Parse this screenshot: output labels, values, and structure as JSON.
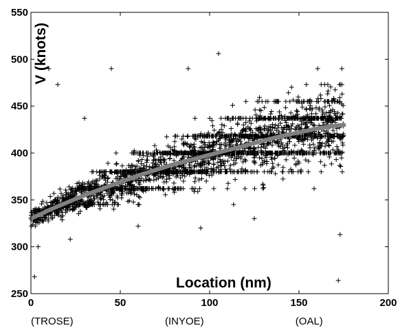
{
  "chart_data": {
    "type": "scatter",
    "title": "",
    "xlabel": "Location (nm)",
    "ylabel": "V (knots)",
    "xlim": [
      0,
      200
    ],
    "ylim": [
      250,
      550
    ],
    "xticks": [
      "0",
      "50",
      "100",
      "150",
      "200"
    ],
    "yticks": [
      "250",
      "300",
      "350",
      "400",
      "450",
      "500",
      "550"
    ],
    "grid": false,
    "legend": "none",
    "waypoints": [
      {
        "label": "(TROSE)",
        "x": 0
      },
      {
        "label": "(INYOE)",
        "x": 75
      },
      {
        "label": "(OAL)",
        "x": 148
      }
    ],
    "series": [
      {
        "kind": "scatter",
        "marker": "+",
        "color": "#000000",
        "point_count": 3000,
        "x_range": [
          0,
          175
        ],
        "discrete_speeds": [
          345,
          362,
          380,
          400,
          418,
          437,
          455,
          473,
          490,
          506
        ],
        "sample_points": [
          {
            "x": 2,
            "y": 268
          },
          {
            "x": 4,
            "y": 300
          },
          {
            "x": 10,
            "y": 490
          },
          {
            "x": 15,
            "y": 473
          },
          {
            "x": 22,
            "y": 308
          },
          {
            "x": 30,
            "y": 437
          },
          {
            "x": 45,
            "y": 490
          },
          {
            "x": 60,
            "y": 322
          },
          {
            "x": 88,
            "y": 490
          },
          {
            "x": 95,
            "y": 320
          },
          {
            "x": 105,
            "y": 506
          },
          {
            "x": 125,
            "y": 330
          },
          {
            "x": 172,
            "y": 264
          },
          {
            "x": 173,
            "y": 313
          },
          {
            "x": 174,
            "y": 490
          }
        ]
      },
      {
        "kind": "fit-line",
        "color": "#808080",
        "x": [
          0,
          10,
          20,
          30,
          40,
          50,
          60,
          70,
          80,
          90,
          100,
          110,
          120,
          130,
          140,
          150,
          160,
          170,
          175
        ],
        "y": [
          330,
          339,
          347,
          355,
          362,
          369,
          376,
          382,
          388,
          393,
          398,
          403,
          408,
          413,
          418,
          422,
          426,
          429,
          430
        ]
      }
    ]
  }
}
